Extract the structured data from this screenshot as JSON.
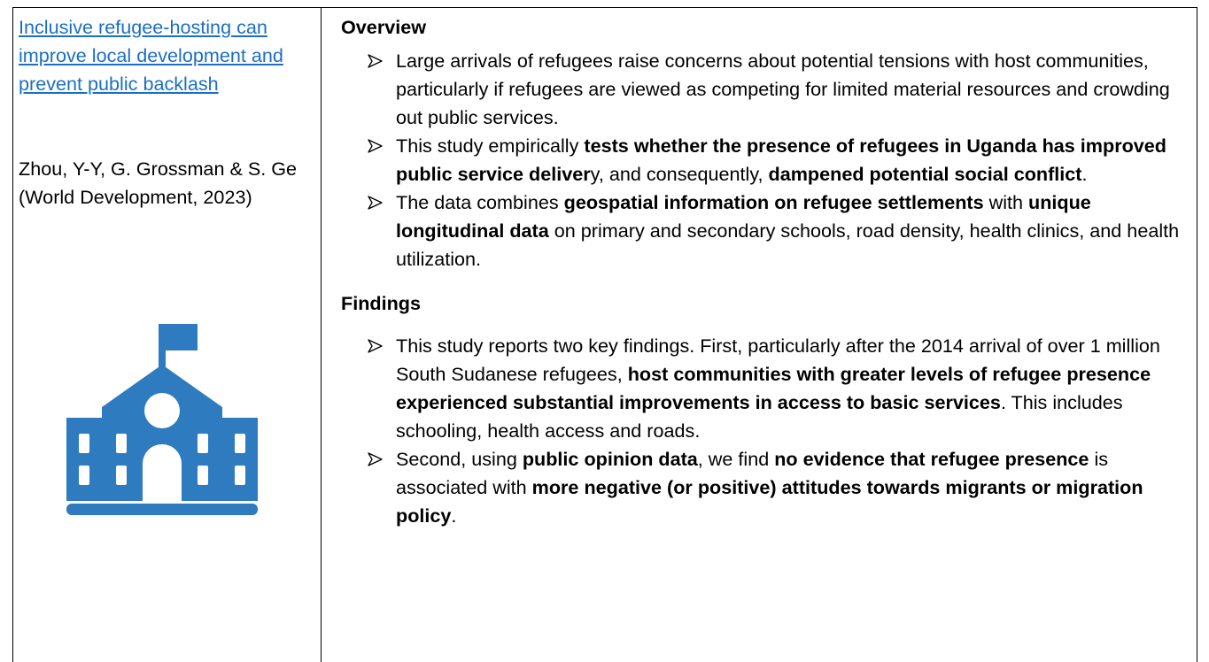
{
  "left": {
    "link": "Inclusive refugee-hosting can improve local development and prevent public backlash",
    "citation": "Zhou, Y-Y, G. Grossman & S. Ge (World Development, 2023)"
  },
  "sections": [
    {
      "heading": "Overview",
      "bullets": [
        [
          {
            "text": "Large arrivals of refugees raise concerns about potential tensions with host communities, particularly if refugees are viewed as competing for limited material resources and crowding out public services.",
            "bold": false
          }
        ],
        [
          {
            "text": "This study empirically ",
            "bold": false
          },
          {
            "text": "tests whether the presence of refugees in Uganda has improved public service deliver",
            "bold": true
          },
          {
            "text": "y, and consequently, ",
            "bold": false
          },
          {
            "text": "dampened potential social conflict",
            "bold": true
          },
          {
            "text": ".",
            "bold": false
          }
        ],
        [
          {
            "text": "The data combines ",
            "bold": false
          },
          {
            "text": "geospatial information on refugee settlements",
            "bold": true
          },
          {
            "text": " with ",
            "bold": false
          },
          {
            "text": "unique longitudinal data",
            "bold": true
          },
          {
            "text": " on primary and secondary schools, road density, health clinics, and health utilization.",
            "bold": false
          }
        ]
      ]
    },
    {
      "heading": "Findings",
      "bullets": [
        [
          {
            "text": "This study reports two key findings. First, particularly after the 2014 arrival of over 1 million South Sudanese refugees, ",
            "bold": false
          },
          {
            "text": "host communities with greater levels of refugee presence experienced substantial improvements in access to basic services",
            "bold": true
          },
          {
            "text": ". This includes schooling, health access and roads.",
            "bold": false
          }
        ],
        [
          {
            "text": "Second, using ",
            "bold": false
          },
          {
            "text": "public opinion data",
            "bold": true
          },
          {
            "text": ", we find ",
            "bold": false
          },
          {
            "text": "no evidence that refugee presence",
            "bold": true
          },
          {
            "text": " is associated with ",
            "bold": false
          },
          {
            "text": "more negative (or positive) attitudes towards migrants or migration policy",
            "bold": true
          },
          {
            "text": ".",
            "bold": false
          }
        ]
      ]
    }
  ]
}
